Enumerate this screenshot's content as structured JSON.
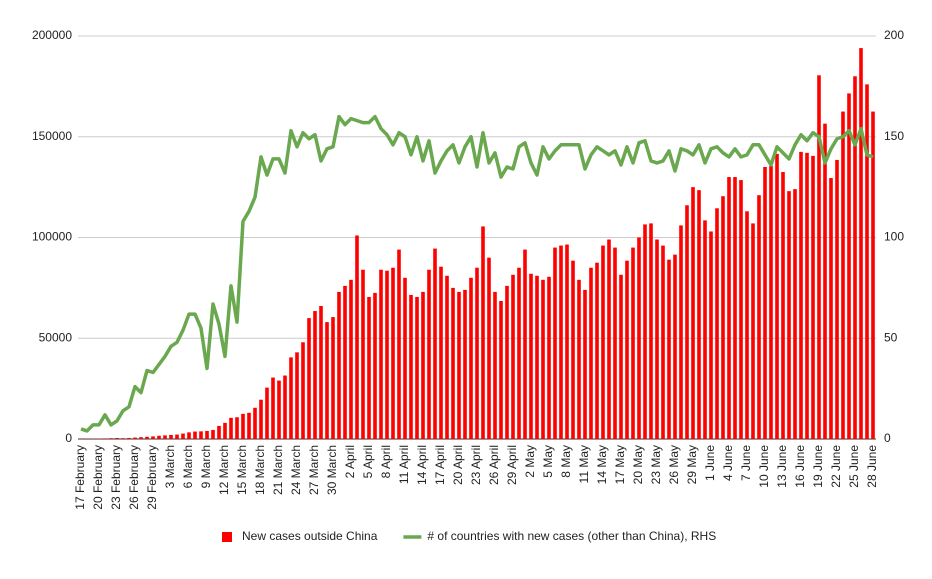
{
  "chart_data": {
    "type": "bar",
    "categories": [
      "17 February",
      null,
      null,
      "20 February",
      null,
      null,
      "23 February",
      null,
      null,
      "26 February",
      null,
      null,
      "29 February",
      null,
      null,
      "3 March",
      null,
      null,
      "6 March",
      null,
      null,
      "9 March",
      null,
      null,
      "12 March",
      null,
      null,
      "15 March",
      null,
      null,
      "18 March",
      null,
      null,
      "21 March",
      null,
      null,
      "24 March",
      null,
      null,
      "27 March",
      null,
      null,
      "30 March",
      null,
      null,
      "2 April",
      null,
      null,
      "5 April",
      null,
      null,
      "8 April",
      null,
      null,
      "11 April",
      null,
      null,
      "14 April",
      null,
      null,
      "17 April",
      null,
      null,
      "20 April",
      null,
      null,
      "23 April",
      null,
      null,
      "26 April",
      null,
      null,
      "29 April",
      null,
      null,
      "2 May",
      null,
      null,
      "5 May",
      null,
      null,
      "8 May",
      null,
      null,
      "11 May",
      null,
      null,
      "14 May",
      null,
      null,
      "17 May",
      null,
      null,
      "20 May",
      null,
      null,
      "23 May",
      null,
      null,
      "26 May",
      null,
      null,
      "29 May",
      null,
      null,
      "1 June",
      null,
      null,
      "4 June",
      null,
      null,
      "7 June",
      null,
      null,
      "10 June",
      null,
      null,
      "13 June",
      null,
      null,
      "16 June",
      null,
      null,
      "19 June",
      null,
      null,
      "22 June",
      null,
      null,
      "25 June",
      null,
      null,
      "28 June"
    ],
    "series": [
      {
        "name": "New cases outside China",
        "color": "#ff0000",
        "type": "bar",
        "values": [
          100,
          150,
          200,
          250,
          300,
          400,
          500,
          400,
          500,
          700,
          900,
          1100,
          1300,
          1600,
          1800,
          2000,
          2200,
          2700,
          3300,
          3700,
          3800,
          4000,
          4500,
          6500,
          8000,
          10500,
          10800,
          12500,
          13000,
          15500,
          19500,
          25500,
          30500,
          29000,
          31500,
          40500,
          43000,
          48000,
          60000,
          63500,
          66000,
          58000,
          60500,
          73000,
          76000,
          79000,
          101000,
          84000,
          70500,
          72500,
          84000,
          83500,
          85000,
          94000,
          80000,
          71500,
          70500,
          73000,
          84000,
          94500,
          85500,
          81000,
          75000,
          73000,
          74000,
          80000,
          85000,
          105500,
          90000,
          73000,
          68500,
          76000,
          81500,
          85000,
          94000,
          82000,
          81000,
          79000,
          80500,
          95000,
          96000,
          96500,
          88500,
          79000,
          74000,
          85000,
          87500,
          96000,
          99000,
          95000,
          81500,
          88500,
          95000,
          100000,
          106500,
          107000,
          99000,
          96000,
          89000,
          91500,
          106000,
          116000,
          125000,
          123500,
          108500,
          103000,
          114500,
          120500,
          130000,
          130000,
          128500,
          113000,
          107000,
          121000,
          135000,
          135500,
          141500,
          132500,
          123000,
          124000,
          142500,
          142000,
          140500,
          180500,
          156500,
          129500,
          138500,
          162500,
          171500,
          180000,
          194000,
          176000,
          162500
        ]
      },
      {
        "name": "# of countries with new cases (other than China), RHS",
        "color": "#6aa84f",
        "type": "line",
        "axis": "y2",
        "values": [
          5,
          4,
          7,
          7,
          12,
          7,
          9,
          14,
          16,
          26,
          23,
          34,
          33,
          37,
          41,
          46,
          48,
          54,
          62,
          62,
          55,
          35,
          67,
          57,
          41,
          76,
          58,
          108,
          113,
          120,
          140,
          131,
          139,
          139,
          132,
          153,
          145,
          152,
          149,
          151,
          138,
          144,
          145,
          160,
          156,
          159,
          158,
          157,
          157,
          160,
          154,
          151,
          146,
          152,
          150,
          141,
          150,
          138,
          148,
          132,
          138,
          143,
          146,
          137,
          145,
          150,
          135,
          152,
          137,
          142,
          130,
          135,
          134,
          145,
          147,
          137,
          131,
          145,
          139,
          143,
          146,
          146,
          146,
          146,
          134,
          141,
          145,
          143,
          141,
          143,
          136,
          145,
          137,
          147,
          148,
          138,
          137,
          138,
          143,
          133,
          144,
          143,
          141,
          146,
          137,
          144,
          145,
          142,
          140,
          144,
          140,
          141,
          146,
          146,
          141,
          136,
          145,
          142,
          139,
          146,
          151,
          148,
          152,
          150,
          137,
          144,
          149,
          150,
          153,
          146,
          154,
          141,
          140
        ]
      }
    ],
    "ylim": [
      0,
      200000
    ],
    "yticks": [
      0,
      50000,
      100000,
      150000,
      200000
    ],
    "y2lim": [
      0,
      200
    ],
    "y2ticks": [
      0,
      50,
      100,
      150,
      200
    ],
    "grid": true,
    "legend": "bottom"
  }
}
